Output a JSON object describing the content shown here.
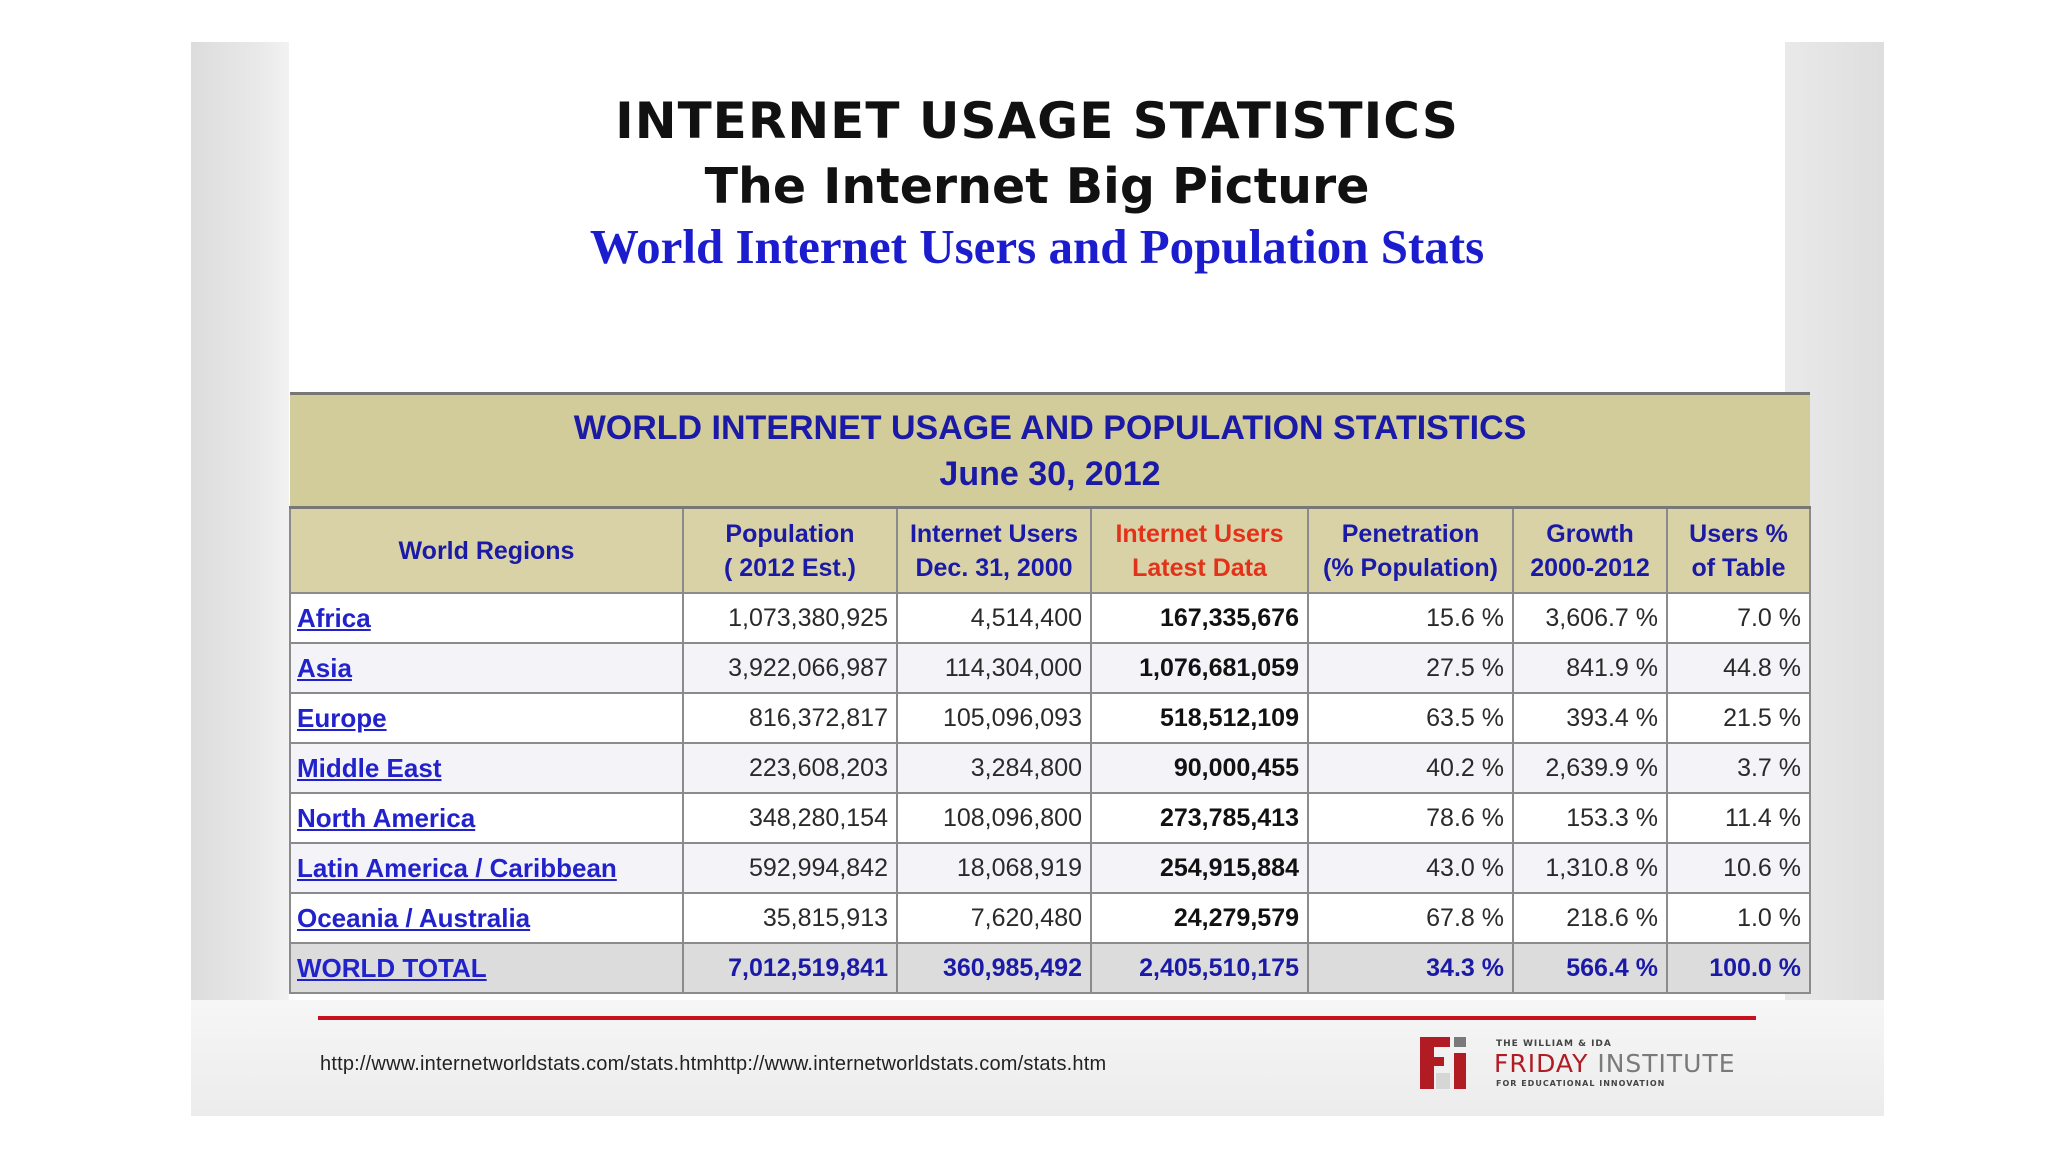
{
  "slide": {
    "title": "INTERNET USAGE STATISTICS",
    "subtitle": "The Internet Big Picture",
    "heading": "World Internet Users and Population Stats"
  },
  "table": {
    "banner_line1": "WORLD INTERNET USAGE AND POPULATION STATISTICS",
    "banner_line2": "June 30, 2012",
    "headers": [
      [
        "World Regions"
      ],
      [
        "Population",
        "( 2012 Est.)"
      ],
      [
        "Internet Users",
        "Dec. 31, 2000"
      ],
      [
        "Internet Users",
        "Latest Data"
      ],
      [
        "Penetration",
        "(% Population)"
      ],
      [
        "Growth",
        "2000-2012"
      ],
      [
        "Users %",
        "of Table"
      ]
    ],
    "rows": [
      [
        "Africa",
        "1,073,380,925",
        "4,514,400",
        "167,335,676",
        "15.6 %",
        "3,606.7 %",
        "7.0 %"
      ],
      [
        "Asia",
        "3,922,066,987",
        "114,304,000",
        "1,076,681,059",
        "27.5 %",
        "841.9 %",
        "44.8 %"
      ],
      [
        "Europe",
        "816,372,817",
        "105,096,093",
        "518,512,109",
        "63.5 %",
        "393.4 %",
        "21.5 %"
      ],
      [
        "Middle East",
        "223,608,203",
        "3,284,800",
        "90,000,455",
        "40.2 %",
        "2,639.9 %",
        "3.7 %"
      ],
      [
        "North America",
        "348,280,154",
        "108,096,800",
        "273,785,413",
        "78.6 %",
        "153.3 %",
        "11.4 %"
      ],
      [
        "Latin America / Caribbean",
        "592,994,842",
        "18,068,919",
        "254,915,884",
        "43.0 %",
        "1,310.8 %",
        "10.6 %"
      ],
      [
        "Oceania / Australia",
        "35,815,913",
        "7,620,480",
        "24,279,579",
        "67.8 %",
        "218.6 %",
        "1.0 %"
      ]
    ],
    "total": [
      "WORLD TOTAL",
      "7,012,519,841",
      "360,985,492",
      "2,405,510,175",
      "34.3 %",
      "566.4 %",
      "100.0 %"
    ]
  },
  "footer": {
    "url": "http://www.internetworldstats.com/stats.htmhttp://www.internetworldstats.com/stats.htm",
    "logo_small": "THE WILLIAM & IDA",
    "logo_name_1": "FRIDAY",
    "logo_name_2": "INSTITUTE",
    "logo_tag": "FOR EDUCATIONAL INNOVATION",
    "accent_color": "#c8101e"
  }
}
